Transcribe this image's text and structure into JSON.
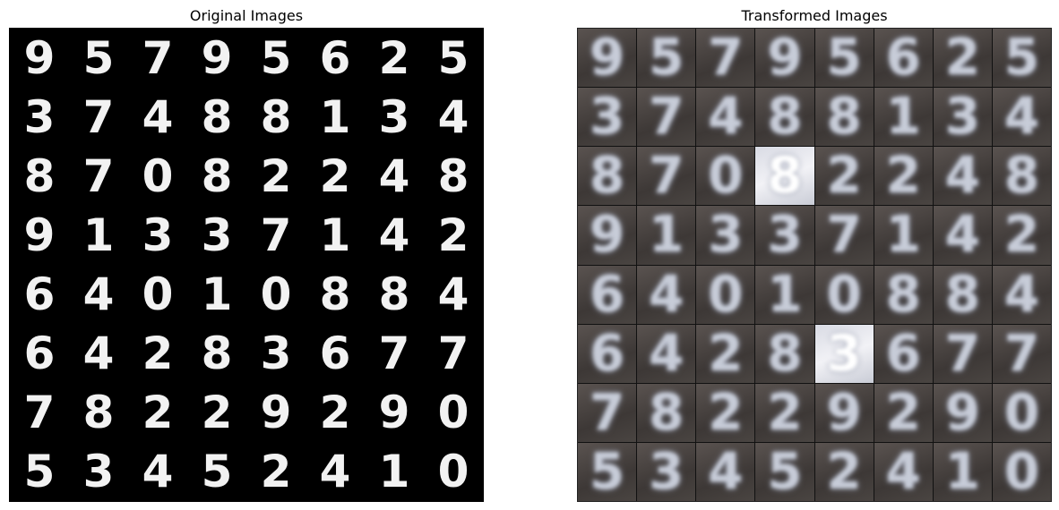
{
  "titles": {
    "left": "Original Images",
    "right": "Transformed Images"
  },
  "digits": [
    [
      "9",
      "5",
      "7",
      "9",
      "5",
      "6",
      "2",
      "5"
    ],
    [
      "3",
      "7",
      "4",
      "8",
      "8",
      "1",
      "3",
      "4"
    ],
    [
      "8",
      "7",
      "0",
      "8",
      "2",
      "2",
      "4",
      "8"
    ],
    [
      "9",
      "1",
      "3",
      "3",
      "7",
      "1",
      "4",
      "2"
    ],
    [
      "6",
      "4",
      "0",
      "1",
      "0",
      "8",
      "8",
      "4"
    ],
    [
      "6",
      "4",
      "2",
      "8",
      "3",
      "6",
      "7",
      "7"
    ],
    [
      "7",
      "8",
      "2",
      "2",
      "9",
      "2",
      "9",
      "0"
    ],
    [
      "5",
      "3",
      "4",
      "5",
      "2",
      "4",
      "1",
      "0"
    ]
  ],
  "colors": {
    "original_bg": "#000000",
    "original_fg": "#f2f2f2",
    "transformed_bg": "#4a4542",
    "transformed_fg": "#c7ccd8"
  }
}
